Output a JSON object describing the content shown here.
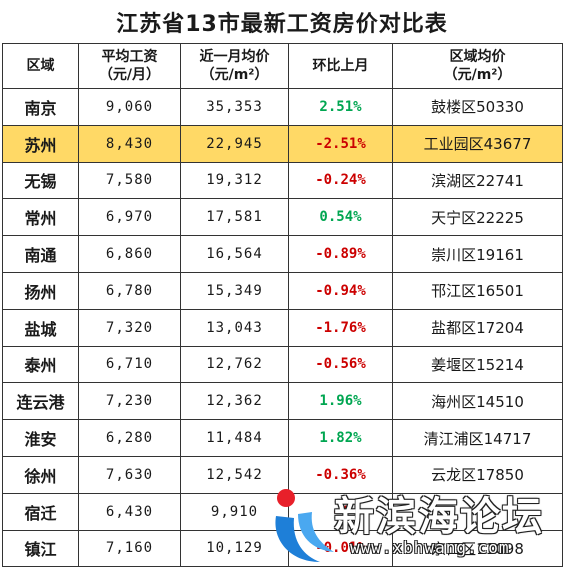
{
  "title": "江苏省13市最新工资房价对比表",
  "headers": {
    "region": "区域",
    "salary_line1": "平均工资",
    "salary_line2": "（元/月）",
    "price_line1": "近一月均价",
    "price_line2": "（元/m²）",
    "mom": "环比上月",
    "district_line1": "区域均价",
    "district_line2": "（元/m²）"
  },
  "colors": {
    "positive": "#00a651",
    "negative": "#cc0000",
    "highlight": "#ffd966"
  },
  "rows": [
    {
      "city": "南京",
      "salary": "9,060",
      "price": "35,353",
      "change": "2.51%",
      "trend": "up",
      "district": "鼓楼区50330"
    },
    {
      "city": "苏州",
      "salary": "8,430",
      "price": "22,945",
      "change": "-2.51%",
      "trend": "down",
      "district": "工业园区43677",
      "highlight": true
    },
    {
      "city": "无锡",
      "salary": "7,580",
      "price": "19,312",
      "change": "-0.24%",
      "trend": "down",
      "district": "滨湖区22741"
    },
    {
      "city": "常州",
      "salary": "6,970",
      "price": "17,581",
      "change": "0.54%",
      "trend": "up",
      "district": "天宁区22225"
    },
    {
      "city": "南通",
      "salary": "6,860",
      "price": "16,564",
      "change": "-0.89%",
      "trend": "down",
      "district": "崇川区19161"
    },
    {
      "city": "扬州",
      "salary": "6,780",
      "price": "15,349",
      "change": "-0.94%",
      "trend": "down",
      "district": "邗江区16501"
    },
    {
      "city": "盐城",
      "salary": "7,320",
      "price": "13,043",
      "change": "-1.76%",
      "trend": "down",
      "district": "盐都区17204"
    },
    {
      "city": "泰州",
      "salary": "6,710",
      "price": "12,762",
      "change": "-0.56%",
      "trend": "down",
      "district": "姜堰区15214"
    },
    {
      "city": "连云港",
      "salary": "7,230",
      "price": "12,362",
      "change": "1.96%",
      "trend": "up",
      "district": "海州区14510"
    },
    {
      "city": "淮安",
      "salary": "6,280",
      "price": "11,484",
      "change": "1.82%",
      "trend": "up",
      "district": "清江浦区14717"
    },
    {
      "city": "徐州",
      "salary": "7,630",
      "price": "12,542",
      "change": "-0.36%",
      "trend": "down",
      "district": "云龙区17850"
    },
    {
      "city": "宿迁",
      "salary": "6,430",
      "price": "9,910",
      "change": "-4",
      "trend": "down",
      "district": ""
    },
    {
      "city": "镇江",
      "salary": "7,160",
      "price": "10,129",
      "change": "-0.01%",
      "trend": "down",
      "district": "京口区11098"
    }
  ],
  "watermark": {
    "logo": "xinbin-logo-icon",
    "text": "新滨海论坛",
    "url": "www.xbhwang.com"
  }
}
